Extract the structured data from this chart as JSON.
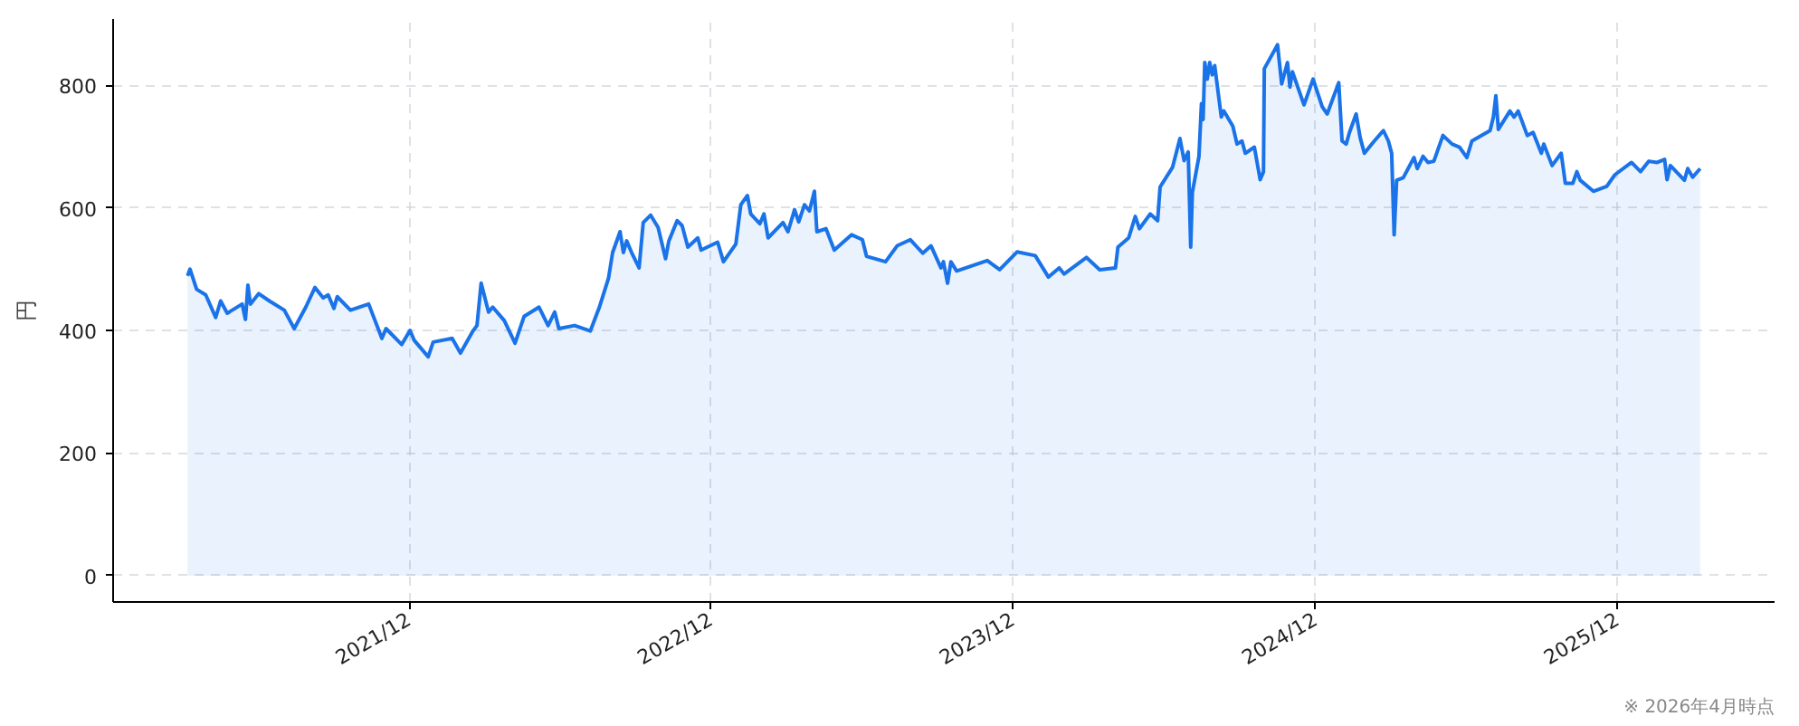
{
  "chart_data": {
    "type": "area",
    "ylabel": "円",
    "annotations": [
      "※ 2026年4月時点"
    ],
    "x": [
      "2021-03-08",
      "2021-03-11",
      "2021-03-19",
      "2021-03-30",
      "2021-04-11",
      "2021-04-17",
      "2021-04-25",
      "2021-05-13",
      "2021-05-17",
      "2021-05-20",
      "2021-05-23",
      "2021-06-02",
      "2021-06-15",
      "2021-07-03",
      "2021-07-15",
      "2021-07-29",
      "2021-08-09",
      "2021-08-19",
      "2021-08-25",
      "2021-09-01",
      "2021-09-05",
      "2021-09-21",
      "2021-10-13",
      "2021-10-29",
      "2021-11-03",
      "2021-11-22",
      "2021-12-02",
      "2021-12-07",
      "2021-12-24",
      "2021-12-30",
      "2022-01-22",
      "2022-02-01",
      "2022-02-16",
      "2022-02-21",
      "2022-02-26",
      "2022-03-07",
      "2022-03-12",
      "2022-03-26",
      "2022-04-08",
      "2022-04-19",
      "2022-05-07",
      "2022-05-18",
      "2022-05-26",
      "2022-05-31",
      "2022-06-19",
      "2022-07-08",
      "2022-07-19",
      "2022-07-30",
      "2022-08-04",
      "2022-08-13",
      "2022-08-17",
      "2022-08-21",
      "2022-08-27",
      "2022-09-05",
      "2022-09-10",
      "2022-09-19",
      "2022-09-28",
      "2022-10-07",
      "2022-10-11",
      "2022-10-21",
      "2022-10-27",
      "2022-11-03",
      "2022-11-15",
      "2022-11-19",
      "2022-12-09",
      "2022-12-16",
      "2022-12-31",
      "2023-01-06",
      "2023-01-14",
      "2023-01-18",
      "2023-01-29",
      "2023-02-03",
      "2023-02-08",
      "2023-02-26",
      "2023-03-04",
      "2023-03-12",
      "2023-03-17",
      "2023-03-24",
      "2023-03-30",
      "2023-04-05",
      "2023-04-08",
      "2023-04-19",
      "2023-04-29",
      "2023-05-20",
      "2023-06-02",
      "2023-06-07",
      "2023-06-30",
      "2023-07-14",
      "2023-07-30",
      "2023-08-14",
      "2023-08-24",
      "2023-09-05",
      "2023-09-08",
      "2023-09-13",
      "2023-09-17",
      "2023-09-24",
      "2023-10-31",
      "2023-11-15",
      "2023-12-06",
      "2023-12-28",
      "2024-01-13",
      "2024-01-26",
      "2024-02-01",
      "2024-02-28",
      "2024-03-15",
      "2024-04-03",
      "2024-04-06",
      "2024-04-19",
      "2024-04-27",
      "2024-05-02",
      "2024-05-15",
      "2024-05-24",
      "2024-05-27",
      "2024-06-11",
      "2024-06-20",
      "2024-06-25",
      "2024-06-30",
      "2024-07-03",
      "2024-07-05",
      "2024-07-13",
      "2024-07-16",
      "2024-07-18",
      "2024-07-20",
      "2024-07-23",
      "2024-07-26",
      "2024-07-29",
      "2024-08-01",
      "2024-08-09",
      "2024-08-12",
      "2024-08-23",
      "2024-08-28",
      "2024-09-03",
      "2024-09-07",
      "2024-09-18",
      "2024-09-25",
      "2024-09-29",
      "2024-09-30",
      "2024-10-16",
      "2024-10-21",
      "2024-10-28",
      "2024-10-31",
      "2024-11-03",
      "2024-11-17",
      "2024-11-28",
      "2024-12-09",
      "2024-12-15",
      "2024-12-29",
      "2025-01-02",
      "2025-01-07",
      "2025-01-11",
      "2025-01-19",
      "2025-01-24",
      "2025-01-29",
      "2025-02-10",
      "2025-02-21",
      "2025-02-27",
      "2025-03-03",
      "2025-03-06",
      "2025-03-09",
      "2025-03-17",
      "2025-03-30",
      "2025-04-03",
      "2025-04-10",
      "2025-04-16",
      "2025-04-23",
      "2025-05-04",
      "2025-05-15",
      "2025-05-24",
      "2025-06-02",
      "2025-06-08",
      "2025-06-30",
      "2025-07-04",
      "2025-07-07",
      "2025-07-10",
      "2025-07-24",
      "2025-07-29",
      "2025-08-03",
      "2025-08-14",
      "2025-08-21",
      "2025-08-31",
      "2025-09-03",
      "2025-09-13",
      "2025-09-24",
      "2025-09-29",
      "2025-10-08",
      "2025-10-13",
      "2025-10-17",
      "2025-11-02",
      "2025-11-18",
      "2025-11-28",
      "2025-12-18",
      "2025-12-29",
      "2026-01-08",
      "2026-01-18",
      "2026-01-27",
      "2026-01-30",
      "2026-02-03",
      "2026-02-20",
      "2026-02-24",
      "2026-03-02",
      "2026-03-11"
    ],
    "series": [
      {
        "color": "#1a73e8",
        "values": [
          489,
          500,
          467,
          458,
          421,
          448,
          428,
          443,
          418,
          474,
          443,
          460,
          448,
          433,
          403,
          438,
          470,
          453,
          458,
          436,
          455,
          433,
          443,
          387,
          403,
          377,
          400,
          384,
          357,
          381,
          387,
          363,
          399,
          408,
          477,
          430,
          438,
          416,
          379,
          423,
          438,
          408,
          430,
          403,
          408,
          399,
          438,
          485,
          527,
          561,
          527,
          546,
          527,
          502,
          576,
          588,
          568,
          517,
          546,
          579,
          571,
          536,
          551,
          531,
          544,
          512,
          541,
          605,
          620,
          590,
          574,
          590,
          551,
          576,
          561,
          597,
          577,
          605,
          595,
          627,
          561,
          566,
          531,
          556,
          548,
          521,
          512,
          538,
          548,
          526,
          538,
          502,
          512,
          477,
          512,
          497,
          514,
          499,
          528,
          522,
          487,
          502,
          492,
          519,
          499,
          502,
          536,
          551,
          586,
          566,
          590,
          579,
          634,
          666,
          713,
          677,
          691,
          536,
          625,
          684,
          770,
          744,
          837,
          810,
          837,
          817,
          832,
          748,
          758,
          733,
          704,
          709,
          689,
          699,
          646,
          659,
          827,
          866,
          802,
          837,
          797,
          822,
          768,
          810,
          765,
          753,
          804,
          709,
          704,
          723,
          753,
          714,
          689,
          709,
          726,
          709,
          689,
          556,
          645,
          649,
          682,
          664,
          684,
          674,
          676,
          718,
          704,
          699,
          682,
          709,
          726,
          748,
          783,
          728,
          758,
          748,
          758,
          718,
          723,
          689,
          704,
          669,
          689,
          640,
          640,
          659,
          645,
          627,
          635,
          654,
          674,
          659,
          676,
          674,
          679,
          646,
          669,
          645,
          664,
          650,
          664
        ]
      }
    ],
    "xlim": [
      "2020-12-08",
      "2026-06-09"
    ],
    "ylim": [
      -43,
      908
    ],
    "xticks": [
      {
        "value": "2021-12-01",
        "label": "2021/12"
      },
      {
        "value": "2022-12-01",
        "label": "2022/12"
      },
      {
        "value": "2023-12-01",
        "label": "2023/12"
      },
      {
        "value": "2024-12-01",
        "label": "2024/12"
      },
      {
        "value": "2025-12-01",
        "label": "2025/12"
      }
    ],
    "yticks": [
      0,
      200,
      400,
      600,
      800
    ],
    "grid": true
  }
}
